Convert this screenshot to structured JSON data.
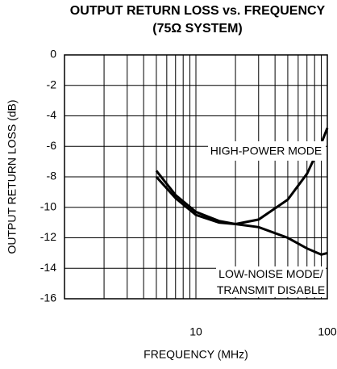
{
  "chart_data": {
    "type": "line",
    "title": "OUTPUT RETURN LOSS vs. FREQUENCY",
    "subtitle": "(75Ω SYSTEM)",
    "x_label": "FREQUENCY (MHz)",
    "y_label": "OUTPUT RETURN LOSS (dB)",
    "log_x": true,
    "grid": true,
    "xlim": [
      1,
      100
    ],
    "xticks": [
      10,
      100
    ],
    "xminor": [
      2,
      3,
      4,
      5,
      6,
      7,
      8,
      9,
      20,
      30,
      40,
      50,
      60,
      70,
      80,
      90
    ],
    "ylim": [
      -16,
      0
    ],
    "yticks": [
      0,
      -2,
      -4,
      -6,
      -8,
      -10,
      -12,
      -14,
      -16
    ],
    "x": [
      5,
      7,
      10,
      15,
      20,
      30,
      50,
      70,
      90,
      100
    ],
    "series": [
      {
        "name": "HIGH-POWER MODE",
        "color": "#000000",
        "values": [
          -7.6,
          -9.2,
          -10.3,
          -10.9,
          -11.1,
          -10.8,
          -9.5,
          -7.8,
          -5.8,
          -4.8
        ]
      },
      {
        "name": "LOW-NOISE MODE/ TRANSMIT DISABLE",
        "color": "#000000",
        "values": [
          -8.0,
          -9.4,
          -10.5,
          -11.0,
          -11.1,
          -11.3,
          -12.0,
          -12.7,
          -13.1,
          -13.0
        ]
      }
    ]
  }
}
